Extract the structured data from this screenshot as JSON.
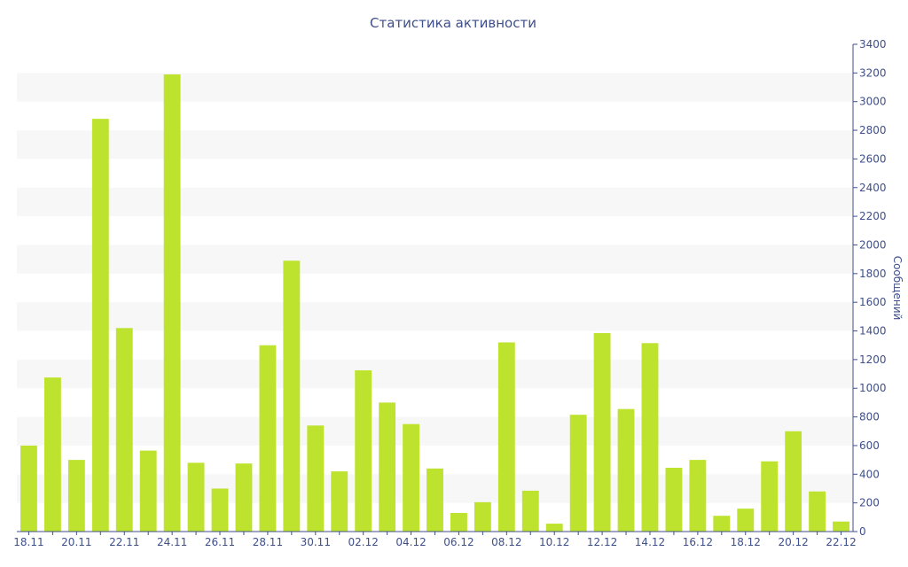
{
  "chart_data": {
    "type": "bar",
    "title": "Статистика активности",
    "ylabel": "Сообщений",
    "xlabel": "",
    "ylim": [
      0,
      3400
    ],
    "yticks": [
      0,
      200,
      400,
      600,
      800,
      1000,
      1200,
      1400,
      1600,
      1800,
      2000,
      2200,
      2400,
      2600,
      2800,
      3000,
      3200,
      3400
    ],
    "y_axis_side": "right",
    "grid": "alternating horizontal bands",
    "legend": "none",
    "bar_color": "#bde32e",
    "band_color": "#f7f7f7",
    "text_color": "#3f4f8a",
    "categories": [
      "18.11",
      "19.11",
      "20.11",
      "21.11",
      "22.11",
      "23.11",
      "24.11",
      "25.11",
      "26.11",
      "27.11",
      "28.11",
      "29.11",
      "30.11",
      "01.12",
      "02.12",
      "03.12",
      "04.12",
      "05.12",
      "06.12",
      "07.12",
      "08.12",
      "09.12",
      "10.12",
      "11.12",
      "12.12",
      "13.12",
      "14.12",
      "15.12",
      "16.12",
      "17.12",
      "18.12",
      "19.12",
      "20.12",
      "21.12",
      "22.12"
    ],
    "xtick_labels": [
      "18.11",
      "",
      "20.11",
      "",
      "22.11",
      "",
      "24.11",
      "",
      "26.11",
      "",
      "28.11",
      "",
      "30.11",
      "",
      "02.12",
      "",
      "04.12",
      "",
      "06.12",
      "",
      "08.12",
      "",
      "10.12",
      "",
      "12.12",
      "",
      "14.12",
      "",
      "16.12",
      "",
      "18.12",
      "",
      "20.12",
      "",
      "22.12"
    ],
    "values": [
      600,
      1075,
      500,
      2880,
      1420,
      565,
      3190,
      480,
      300,
      475,
      1300,
      1890,
      740,
      420,
      1125,
      900,
      750,
      440,
      130,
      205,
      1320,
      285,
      55,
      815,
      1385,
      855,
      1315,
      445,
      500,
      110,
      160,
      490,
      700,
      280,
      70
    ]
  }
}
